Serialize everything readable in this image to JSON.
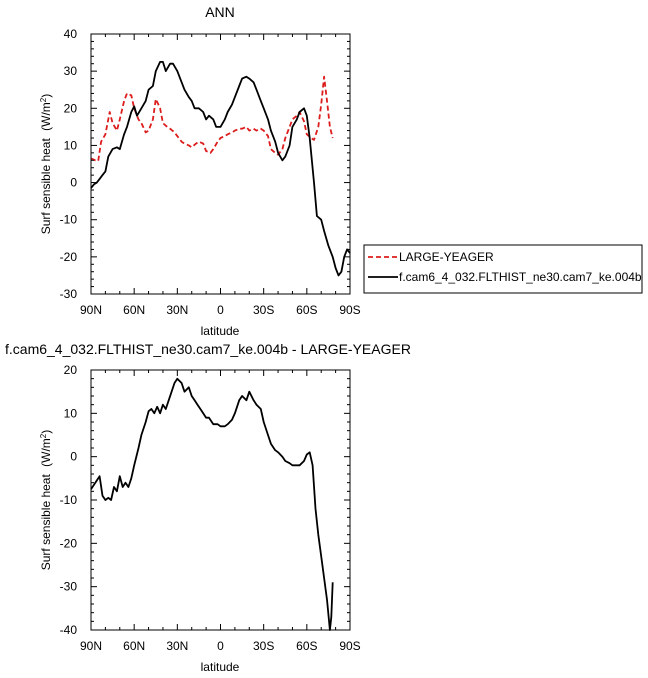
{
  "chart_data": [
    {
      "type": "line",
      "title": "ANN",
      "xlabel": "latitude",
      "ylabel": "Surf sensible heat",
      "ylabel_unit": "(W/m",
      "ylabel_sup": "2",
      "ylabel_close": ")",
      "xlim": [
        90,
        -90
      ],
      "ylim": [
        -30,
        40
      ],
      "x_ticks": [
        90,
        60,
        30,
        0,
        -30,
        -60,
        -90
      ],
      "x_tick_labels": [
        "90N",
        "60N",
        "30N",
        "0",
        "30S",
        "60S",
        "90S"
      ],
      "y_ticks": [
        -30,
        -20,
        -10,
        0,
        10,
        20,
        30,
        40
      ],
      "y_tick_labels": [
        "-30",
        "-20",
        "-10",
        "0",
        "10",
        "20",
        "30",
        "40"
      ],
      "grid": false,
      "legend": "right",
      "series": [
        {
          "name": "LARGE-YEAGER",
          "color": "#dd1c1c",
          "dash": "dashed",
          "x": [
            90,
            87,
            85,
            83,
            80,
            77,
            75,
            72,
            70,
            67,
            65,
            62,
            60,
            57,
            55,
            52,
            50,
            47,
            45,
            42,
            40,
            37,
            35,
            32,
            30,
            27,
            25,
            22,
            20,
            17,
            15,
            12,
            10,
            7,
            5,
            2,
            0,
            -3,
            -5,
            -8,
            -10,
            -13,
            -15,
            -18,
            -20,
            -23,
            -25,
            -28,
            -30,
            -33,
            -35,
            -38,
            -40,
            -43,
            -45,
            -48,
            -50,
            -53,
            -55,
            -58,
            -60,
            -63,
            -65,
            -68,
            -70,
            -72,
            -74,
            -76,
            -78
          ],
          "y": [
            6.5,
            6,
            5.8,
            11,
            13,
            19,
            16,
            14,
            17,
            22,
            24,
            23.5,
            20,
            17,
            16,
            13.5,
            14,
            17,
            22.5,
            20,
            16,
            15,
            14.5,
            13.5,
            12.5,
            11,
            10.5,
            10,
            9.5,
            10.5,
            11,
            10.5,
            8.5,
            8,
            9,
            11,
            12,
            12.5,
            13,
            13.5,
            14,
            14.5,
            14.5,
            15,
            14,
            14.5,
            14,
            14.5,
            14,
            12.5,
            9,
            8,
            7.5,
            9,
            12,
            15,
            17,
            18,
            19,
            16.5,
            13,
            12,
            11.5,
            15,
            21,
            28.5,
            22,
            15,
            12
          ]
        },
        {
          "name": "f.cam6_4_032.FLTHIST_ne30.cam7_ke.004b",
          "color": "#000000",
          "dash": "solid",
          "x": [
            90,
            88,
            86,
            84,
            82,
            80,
            78,
            75,
            72,
            70,
            67,
            65,
            62,
            60,
            58,
            55,
            52,
            50,
            47,
            45,
            42,
            40,
            38,
            35,
            33,
            30,
            28,
            25,
            22,
            20,
            18,
            15,
            12,
            10,
            8,
            5,
            3,
            0,
            -3,
            -5,
            -8,
            -10,
            -13,
            -15,
            -18,
            -20,
            -23,
            -25,
            -28,
            -30,
            -33,
            -35,
            -38,
            -40,
            -43,
            -45,
            -48,
            -50,
            -53,
            -55,
            -58,
            -60,
            -62,
            -65,
            -67,
            -70,
            -72,
            -75,
            -78,
            -80,
            -82,
            -84,
            -86,
            -88,
            -90
          ],
          "y": [
            -1.5,
            -0.5,
            0,
            1,
            2,
            3,
            7,
            9,
            9.5,
            9,
            13,
            15,
            19,
            20.5,
            18,
            20,
            22,
            25,
            26,
            30,
            32.5,
            32.5,
            30,
            32,
            32,
            30,
            28,
            25,
            23,
            22,
            20,
            20,
            19,
            17,
            18,
            17,
            15,
            15,
            17,
            19,
            21,
            23,
            26,
            28,
            28.5,
            28,
            27,
            25,
            22,
            20,
            17,
            14,
            11,
            8,
            6,
            7,
            10,
            15,
            17,
            19,
            20,
            18,
            12,
            0,
            -9,
            -10,
            -13,
            -17,
            -20,
            -23,
            -25,
            -24,
            -20,
            -18,
            -19
          ]
        }
      ]
    },
    {
      "type": "line",
      "title": "f.cam6_4_032.FLTHIST_ne30.cam7_ke.004b - LARGE-YEAGER",
      "xlabel": "latitude",
      "ylabel": "Surf sensible heat",
      "ylabel_unit": "(W/m",
      "ylabel_sup": "2",
      "ylabel_close": ")",
      "xlim": [
        90,
        -90
      ],
      "ylim": [
        -40,
        20
      ],
      "x_ticks": [
        90,
        60,
        30,
        0,
        -30,
        -60,
        -90
      ],
      "x_tick_labels": [
        "90N",
        "60N",
        "30N",
        "0",
        "30S",
        "60S",
        "90S"
      ],
      "y_ticks": [
        -40,
        -30,
        -20,
        -10,
        0,
        10,
        20
      ],
      "y_tick_labels": [
        "-40",
        "-30",
        "-20",
        "-10",
        "0",
        "10",
        "20"
      ],
      "grid": false,
      "series": [
        {
          "color": "#000000",
          "dash": "solid",
          "x": [
            90,
            87,
            84,
            82,
            80,
            78,
            76,
            74,
            72,
            70,
            68,
            66,
            64,
            62,
            60,
            57,
            55,
            52,
            50,
            48,
            46,
            44,
            42,
            40,
            38,
            36,
            34,
            32,
            30,
            27,
            25,
            22,
            20,
            18,
            16,
            14,
            12,
            10,
            8,
            5,
            2,
            0,
            -3,
            -5,
            -8,
            -10,
            -13,
            -15,
            -18,
            -20,
            -23,
            -25,
            -28,
            -30,
            -33,
            -35,
            -38,
            -40,
            -43,
            -45,
            -48,
            -50,
            -53,
            -55,
            -58,
            -60,
            -62,
            -64,
            -66,
            -68,
            -70,
            -72,
            -74,
            -76,
            -77,
            -78
          ],
          "y": [
            -7.5,
            -6,
            -4.5,
            -9,
            -10,
            -9.5,
            -10,
            -7,
            -8,
            -4.5,
            -7,
            -6,
            -7,
            -5,
            -2,
            2,
            5,
            8,
            10.5,
            11,
            10,
            11.5,
            10,
            12,
            11,
            13,
            15,
            17,
            18,
            17,
            15,
            16,
            14,
            13,
            12,
            11,
            10,
            9,
            9,
            7.5,
            7.5,
            7,
            7,
            7.5,
            8.5,
            10,
            13,
            14,
            13,
            15,
            13,
            12,
            11,
            8,
            5,
            3,
            1.5,
            1,
            0,
            -1,
            -1.5,
            -2,
            -2,
            -2,
            -1,
            0.5,
            1,
            -2,
            -12,
            -18,
            -23,
            -28,
            -33,
            -40,
            -37,
            -29
          ]
        }
      ]
    }
  ]
}
